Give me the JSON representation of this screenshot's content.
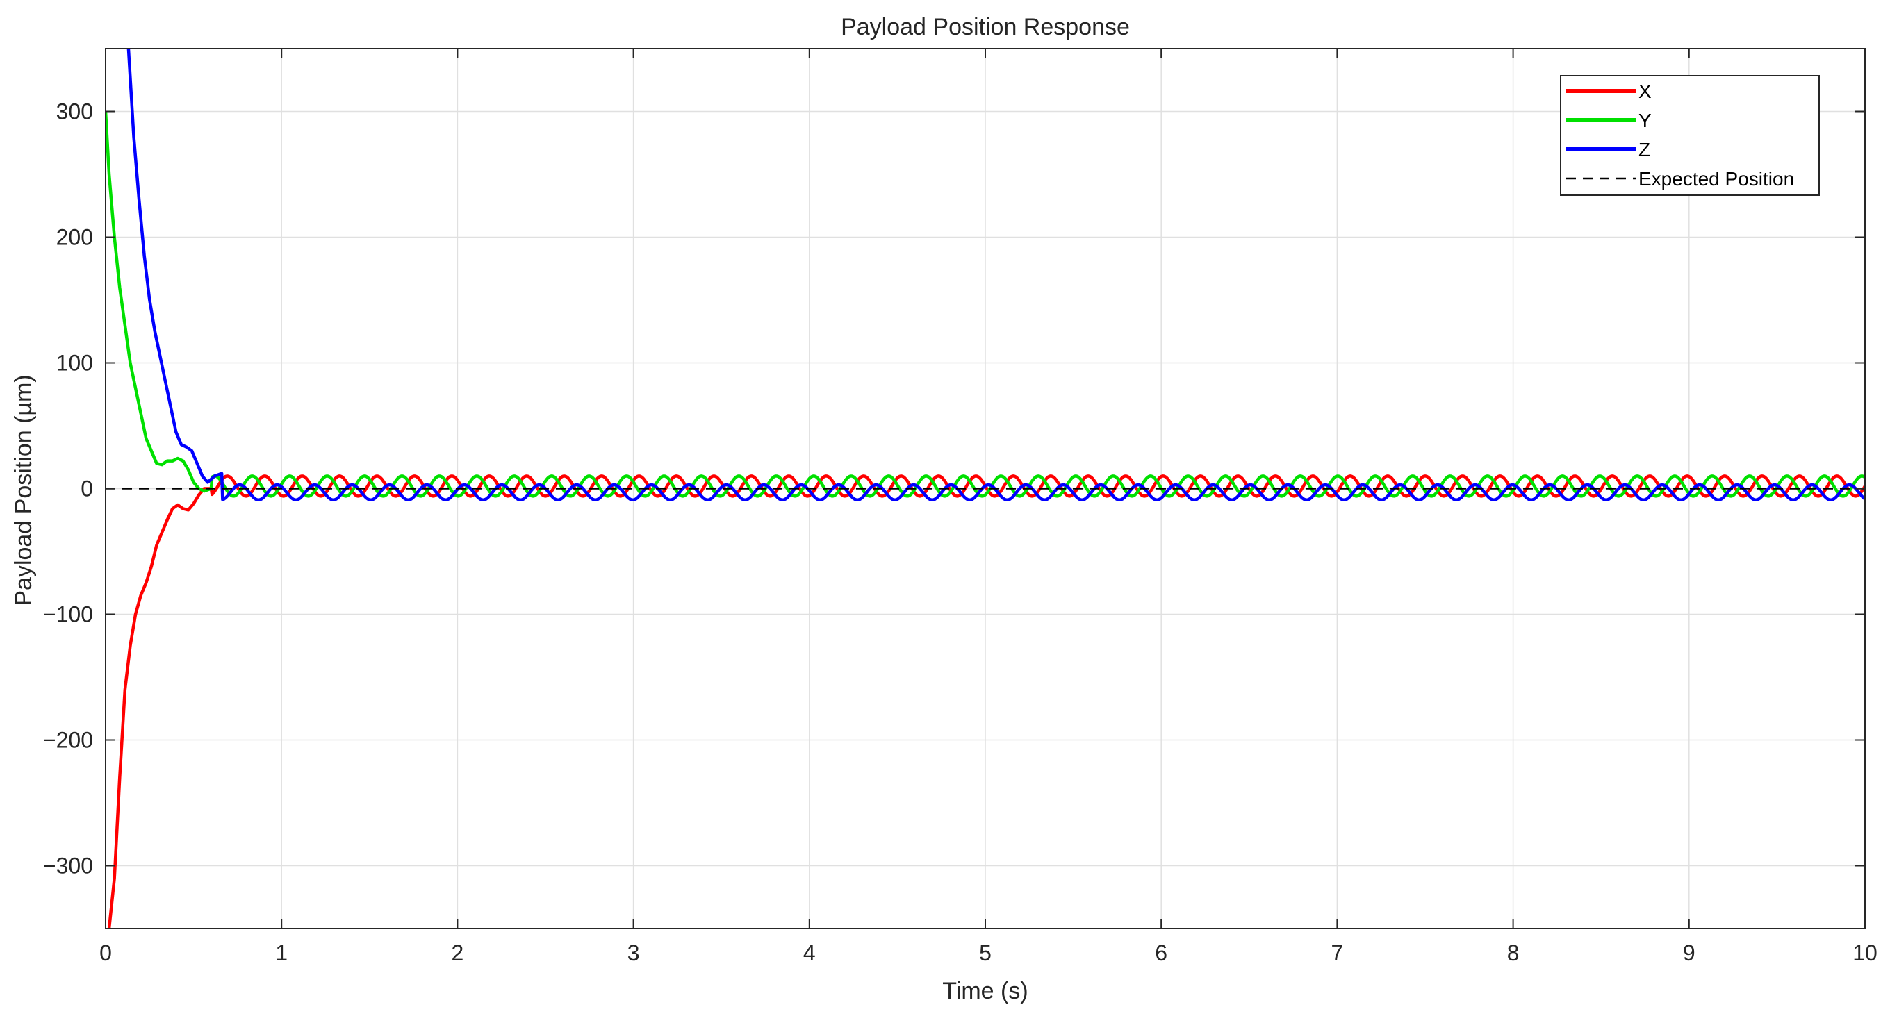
{
  "chart_data": {
    "type": "line",
    "title": "Payload Position Response",
    "xlabel": "Time (s)",
    "ylabel": "Payload Position (µm)",
    "xlim": [
      0,
      10
    ],
    "ylim": [
      -350,
      350
    ],
    "xticks": [
      0,
      1,
      2,
      3,
      4,
      5,
      6,
      7,
      8,
      9,
      10
    ],
    "xtick_labels": [
      "0",
      "1",
      "2",
      "3",
      "4",
      "5",
      "6",
      "7",
      "8",
      "9",
      "10"
    ],
    "yticks": [
      -300,
      -200,
      -100,
      0,
      100,
      200,
      300
    ],
    "ytick_labels": [
      "−300",
      "−200",
      "−100",
      "0",
      "100",
      "200",
      "300"
    ],
    "grid": true,
    "legend_position": "top-right",
    "series": [
      {
        "name": "X",
        "color": "#ff0000",
        "line_style": "solid",
        "x": [
          0.02,
          0.05,
          0.08,
          0.11,
          0.14,
          0.17,
          0.2,
          0.23,
          0.26,
          0.29,
          0.32,
          0.35,
          0.38,
          0.41,
          0.44,
          0.47,
          0.5,
          0.53,
          0.56,
          0.6
        ],
        "y": [
          -350,
          -310,
          -230,
          -160,
          -125,
          -100,
          -85,
          -75,
          -62,
          -45,
          -35,
          -25,
          -16,
          -13,
          -16,
          -17,
          -12,
          -5,
          0,
          0
        ],
        "steady_state": {
          "start": 0.6,
          "end": 10,
          "offset": 2,
          "amplitude": 8,
          "frequency": 4.7,
          "phase": 0.0
        }
      },
      {
        "name": "Y",
        "color": "#00e000",
        "line_style": "solid",
        "x": [
          0.0,
          0.02,
          0.05,
          0.08,
          0.11,
          0.14,
          0.17,
          0.2,
          0.23,
          0.26,
          0.29,
          0.32,
          0.35,
          0.38,
          0.41,
          0.44,
          0.47,
          0.5,
          0.53,
          0.56,
          0.6
        ],
        "y": [
          300,
          250,
          200,
          160,
          130,
          100,
          80,
          60,
          40,
          30,
          20,
          19,
          22,
          22,
          24,
          22,
          15,
          5,
          0,
          -2,
          0
        ],
        "steady_state": {
          "start": 0.6,
          "end": 10,
          "offset": 2,
          "amplitude": 8,
          "frequency": 4.7,
          "phase": 2.094
        }
      },
      {
        "name": "Z",
        "color": "#0000ff",
        "line_style": "solid",
        "x": [
          0.13,
          0.16,
          0.19,
          0.22,
          0.25,
          0.28,
          0.31,
          0.34,
          0.37,
          0.4,
          0.43,
          0.46,
          0.49,
          0.52,
          0.55,
          0.58,
          0.62,
          0.66
        ],
        "y": [
          350,
          280,
          230,
          185,
          150,
          125,
          105,
          85,
          65,
          45,
          35,
          33,
          30,
          20,
          10,
          5,
          10,
          12
        ],
        "steady_state": {
          "start": 0.66,
          "end": 10,
          "offset": -3,
          "amplitude": 6,
          "frequency": 4.7,
          "phase": 4.189
        }
      },
      {
        "name": "Expected Position",
        "color": "#000000",
        "line_style": "dashed",
        "x": [
          0,
          10
        ],
        "y": [
          0,
          0
        ]
      }
    ]
  }
}
